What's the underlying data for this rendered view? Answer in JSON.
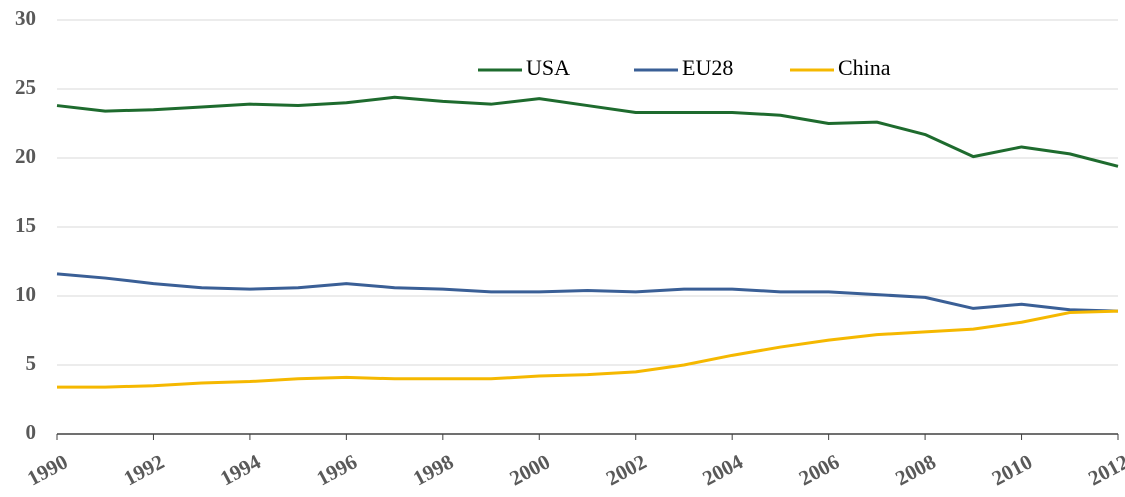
{
  "chart_data": {
    "type": "line",
    "x": [
      1990,
      1991,
      1992,
      1993,
      1994,
      1995,
      1996,
      1997,
      1998,
      1999,
      2000,
      2001,
      2002,
      2003,
      2004,
      2005,
      2006,
      2007,
      2008,
      2009,
      2010,
      2011,
      2012
    ],
    "series": [
      {
        "name": "USA",
        "color": "#1e6b2e",
        "values": [
          23.8,
          23.4,
          23.5,
          23.7,
          23.9,
          23.8,
          24.0,
          24.4,
          24.1,
          23.9,
          24.3,
          23.8,
          23.3,
          23.3,
          23.3,
          23.1,
          22.5,
          22.6,
          21.7,
          20.1,
          20.8,
          20.3,
          19.4
        ]
      },
      {
        "name": "EU28",
        "color": "#3a5f96",
        "values": [
          11.6,
          11.3,
          10.9,
          10.6,
          10.5,
          10.6,
          10.9,
          10.6,
          10.5,
          10.3,
          10.3,
          10.4,
          10.3,
          10.5,
          10.5,
          10.3,
          10.3,
          10.1,
          9.9,
          9.1,
          9.4,
          9.0,
          8.9
        ]
      },
      {
        "name": "China",
        "color": "#f5b800",
        "values": [
          3.4,
          3.4,
          3.5,
          3.7,
          3.8,
          4.0,
          4.1,
          4.0,
          4.0,
          4.0,
          4.2,
          4.3,
          4.5,
          5.0,
          5.7,
          6.3,
          6.8,
          7.2,
          7.4,
          7.6,
          8.1,
          8.8,
          8.9
        ]
      }
    ],
    "xlim": [
      1990,
      2012
    ],
    "xticks": [
      1990,
      1992,
      1994,
      1996,
      1998,
      2000,
      2002,
      2004,
      2006,
      2008,
      2010,
      2012
    ],
    "ylim": [
      0,
      30
    ],
    "yticks": [
      0,
      5,
      10,
      15,
      20,
      25,
      30
    ],
    "grid": true,
    "legend": "top"
  }
}
